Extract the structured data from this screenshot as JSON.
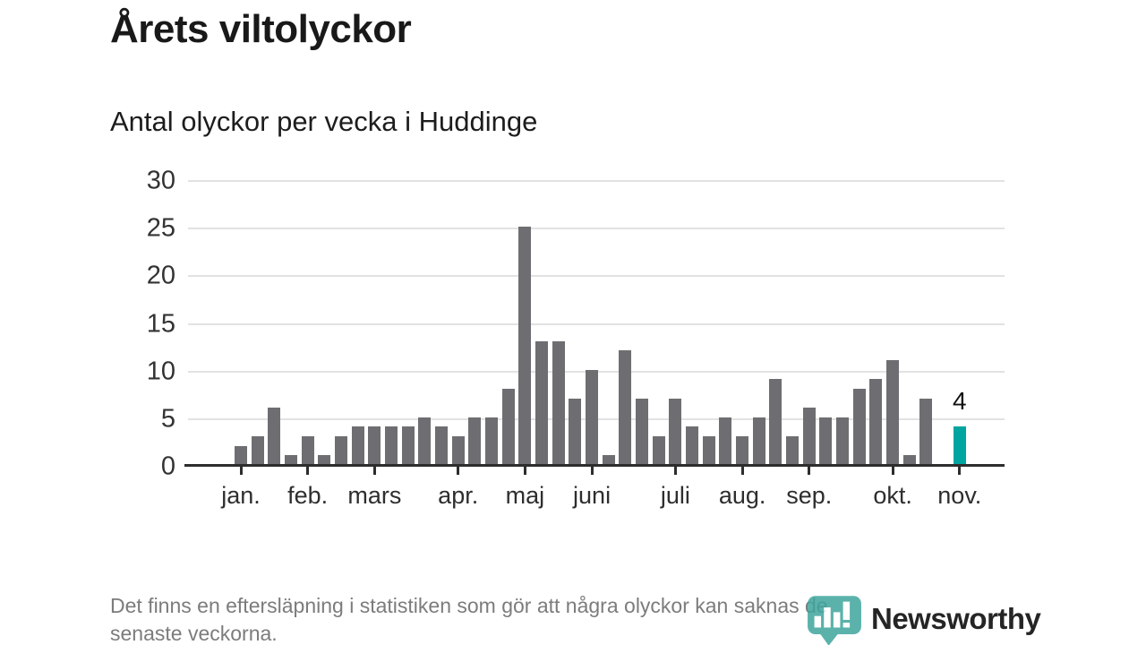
{
  "title": "Årets viltolyckor",
  "subtitle": "Antal olyckor per vecka i Huddinge",
  "footer": {
    "note": "Det finns en eftersläpning i statistiken som gör att några olyckor kan saknas de\nsenaste veckorna."
  },
  "logo": {
    "text": "Newsworthy",
    "color": "#47a49d",
    "icon": "newsworthy-pin-barchart-icon"
  },
  "chart_data": {
    "type": "bar",
    "title": "Årets viltolyckor",
    "subtitle": "Antal olyckor per vecka i Huddinge",
    "x_unit": "week",
    "values": [
      2,
      3,
      6,
      1,
      3,
      1,
      3,
      4,
      4,
      4,
      4,
      5,
      4,
      3,
      5,
      5,
      8,
      25,
      13,
      13,
      7,
      10,
      1,
      12,
      7,
      3,
      7,
      4,
      3,
      5,
      3,
      5,
      9,
      3,
      6,
      5,
      5,
      8,
      9,
      11,
      1,
      7,
      0,
      4
    ],
    "months": [
      {
        "label": "jan.",
        "week": 0
      },
      {
        "label": "feb.",
        "week": 4
      },
      {
        "label": "mars",
        "week": 8
      },
      {
        "label": "apr.",
        "week": 13
      },
      {
        "label": "maj",
        "week": 17
      },
      {
        "label": "juni",
        "week": 21
      },
      {
        "label": "juli",
        "week": 26
      },
      {
        "label": "aug.",
        "week": 30
      },
      {
        "label": "sep.",
        "week": 34
      },
      {
        "label": "okt.",
        "week": 39
      },
      {
        "label": "nov.",
        "week": 43
      }
    ],
    "yticks": [
      0,
      5,
      10,
      15,
      20,
      25,
      30
    ],
    "ylim": [
      0,
      30
    ],
    "grid": "horizontal",
    "legend": "none",
    "bar_color": "#6e6e72",
    "highlight_index": 43,
    "highlight_color": "#00a5a0",
    "highlight_label": "4"
  }
}
